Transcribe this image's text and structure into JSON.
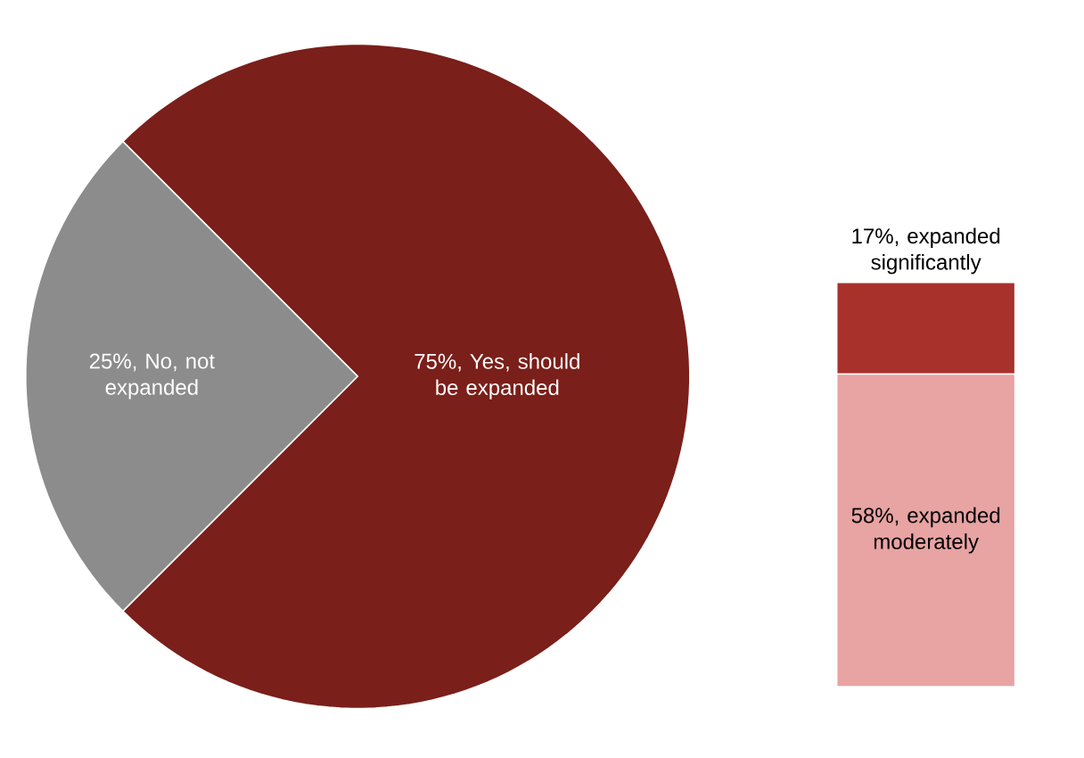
{
  "chart_data": [
    {
      "type": "pie",
      "categories": [
        "No, not expanded",
        "Yes, should be expanded"
      ],
      "values": [
        25,
        75
      ],
      "value_labels": [
        "25%,",
        "75%,"
      ],
      "colors": [
        "#8c8c8c",
        "#7a1f1a"
      ]
    },
    {
      "type": "bar",
      "stacked": true,
      "categories": [
        null
      ],
      "series": [
        {
          "name": "expanded moderately",
          "color": "#e8a3a3",
          "values": [
            58
          ],
          "value_labels": [
            "58%,"
          ]
        },
        {
          "name": "expanded significantly",
          "color": "#a8312c",
          "values": [
            17
          ],
          "value_labels": [
            "17%,"
          ]
        }
      ]
    }
  ]
}
